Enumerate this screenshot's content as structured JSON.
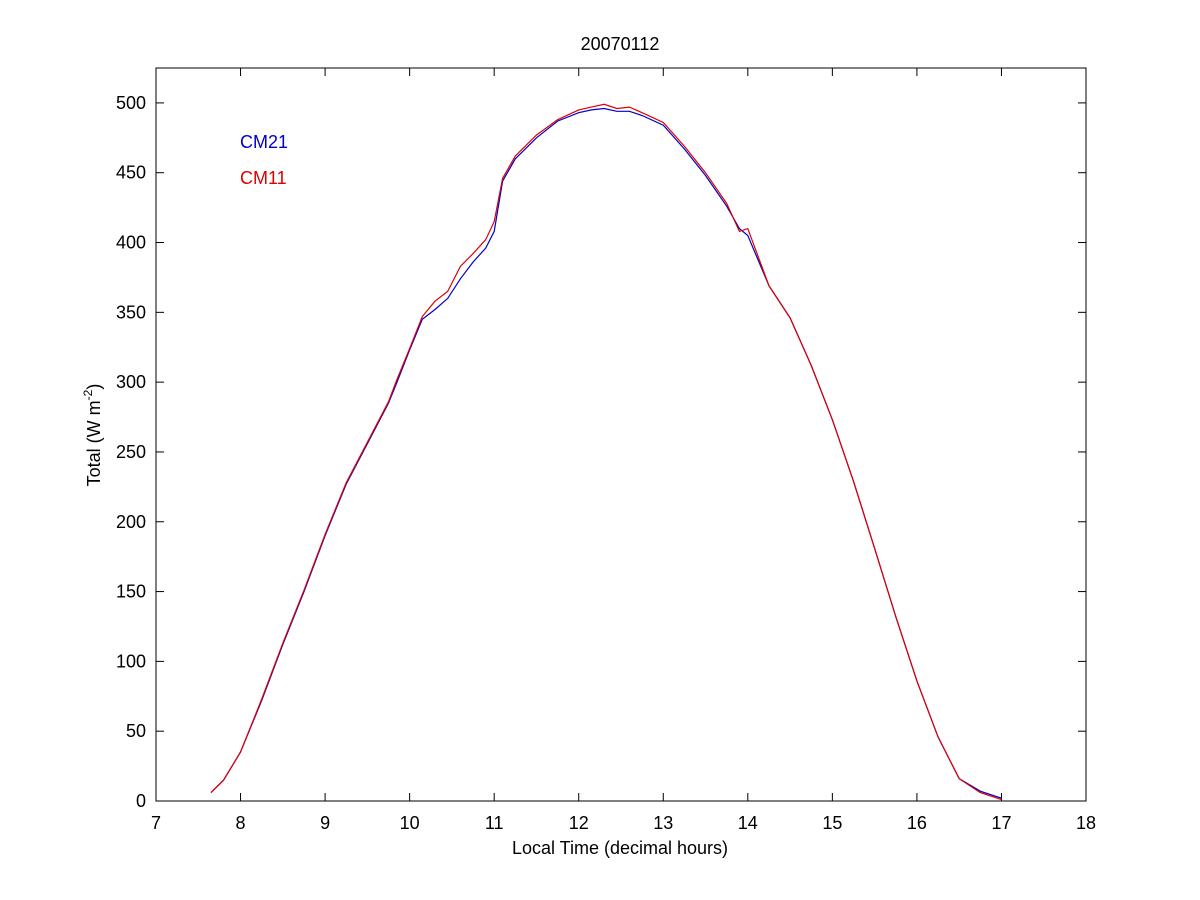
{
  "chart_data": {
    "type": "line",
    "title": "20070112",
    "xlabel": "Local Time (decimal hours)",
    "ylabel_main": "Total (W m",
    "ylabel_sup": "-2",
    "ylabel_close": ")",
    "xlim": [
      7,
      18
    ],
    "ylim": [
      0,
      525
    ],
    "xticks": [
      7,
      8,
      9,
      10,
      11,
      12,
      13,
      14,
      15,
      16,
      17,
      18
    ],
    "yticks": [
      0,
      50,
      100,
      150,
      200,
      250,
      300,
      350,
      400,
      450,
      500
    ],
    "grid": false,
    "legend_position": "top-left",
    "series": [
      {
        "name": "CM21",
        "color": "#0000cc",
        "x": [
          7.65,
          7.8,
          8.0,
          8.25,
          8.5,
          8.75,
          9.0,
          9.25,
          9.5,
          9.75,
          9.85,
          10.0,
          10.15,
          10.3,
          10.45,
          10.6,
          10.75,
          10.9,
          11.0,
          11.1,
          11.25,
          11.5,
          11.75,
          12.0,
          12.15,
          12.3,
          12.45,
          12.6,
          12.75,
          13.0,
          13.25,
          13.5,
          13.75,
          13.9,
          14.0,
          14.25,
          14.5,
          14.75,
          15.0,
          15.25,
          15.5,
          15.75,
          16.0,
          16.25,
          16.5,
          16.75,
          17.0
        ],
        "y": [
          6,
          15,
          35,
          72,
          112,
          150,
          190,
          227,
          256,
          285,
          300,
          323,
          345,
          352,
          360,
          374,
          386,
          396,
          408,
          444,
          460,
          475,
          487,
          493,
          495,
          496,
          494,
          494,
          491,
          484,
          467,
          448,
          426,
          410,
          405,
          369,
          346,
          312,
          273,
          229,
          181,
          132,
          86,
          46,
          16,
          7,
          2
        ]
      },
      {
        "name": "CM11",
        "color": "#dd0000",
        "x": [
          7.65,
          7.8,
          8.0,
          8.25,
          8.5,
          8.75,
          9.0,
          9.25,
          9.5,
          9.75,
          9.85,
          10.0,
          10.15,
          10.3,
          10.45,
          10.6,
          10.75,
          10.9,
          11.0,
          11.1,
          11.25,
          11.5,
          11.75,
          12.0,
          12.15,
          12.3,
          12.45,
          12.6,
          12.75,
          13.0,
          13.25,
          13.5,
          13.75,
          13.9,
          14.0,
          14.25,
          14.5,
          14.75,
          15.0,
          15.25,
          15.5,
          15.75,
          16.0,
          16.25,
          16.5,
          16.75,
          17.0
        ],
        "y": [
          6,
          15,
          35,
          73,
          113,
          151,
          191,
          228,
          257,
          286,
          302,
          324,
          347,
          358,
          365,
          383,
          392,
          402,
          415,
          446,
          462,
          477,
          488,
          495,
          497,
          499,
          496,
          497,
          493,
          486,
          469,
          450,
          428,
          408,
          410,
          369,
          346,
          312,
          273,
          229,
          181,
          132,
          86,
          46,
          16,
          6,
          1
        ]
      }
    ]
  }
}
